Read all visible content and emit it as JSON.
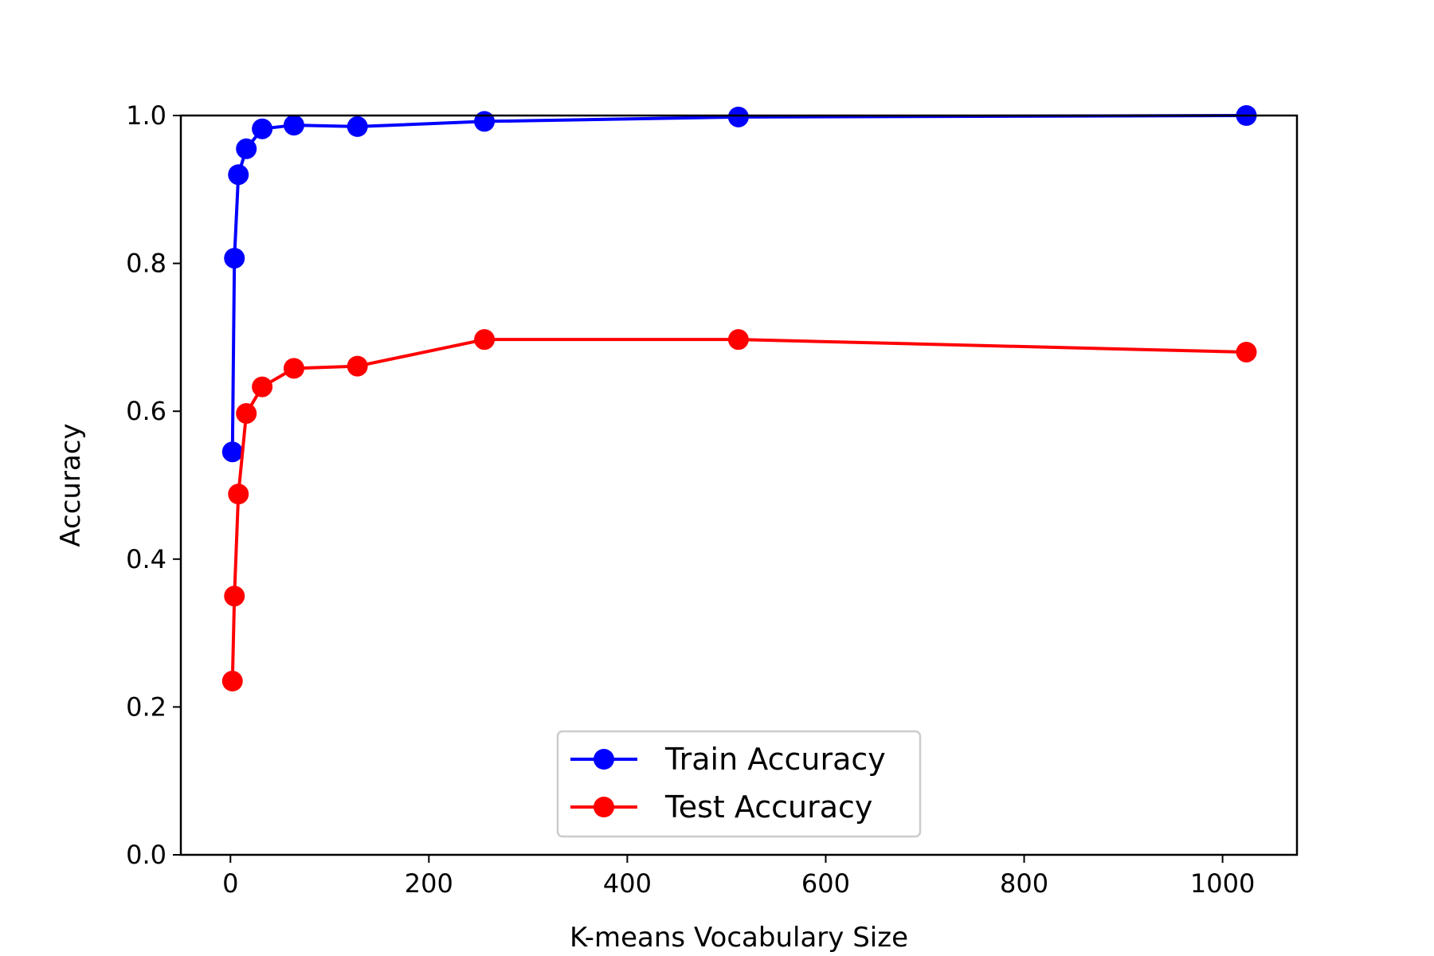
{
  "chart_data": {
    "type": "line",
    "title": "",
    "xlabel": "K-means Vocabulary Size",
    "ylabel": "Accuracy",
    "xlim": [
      -50,
      1075
    ],
    "ylim": [
      0.0,
      1.0
    ],
    "xticks": [
      0,
      200,
      400,
      600,
      800,
      1000
    ],
    "yticks": [
      0.0,
      0.2,
      0.4,
      0.6,
      0.8,
      1.0
    ],
    "xtick_labels": [
      "0",
      "200",
      "400",
      "600",
      "800",
      "1000"
    ],
    "ytick_labels": [
      "0.0",
      "0.2",
      "0.4",
      "0.6",
      "0.8",
      "1.0"
    ],
    "grid": false,
    "legend_position": "lower-center",
    "x": [
      2,
      4,
      8,
      16,
      32,
      64,
      128,
      256,
      512,
      1024
    ],
    "series": [
      {
        "name": "Train Accuracy",
        "color": "#0000ff",
        "marker": "circle",
        "values": [
          0.545,
          0.807,
          0.92,
          0.955,
          0.982,
          0.987,
          0.985,
          0.992,
          0.998,
          1.0
        ]
      },
      {
        "name": "Test Accuracy",
        "color": "#ff0000",
        "marker": "circle",
        "values": [
          0.235,
          0.35,
          0.488,
          0.597,
          0.633,
          0.658,
          0.661,
          0.697,
          0.697,
          0.68
        ]
      }
    ]
  }
}
